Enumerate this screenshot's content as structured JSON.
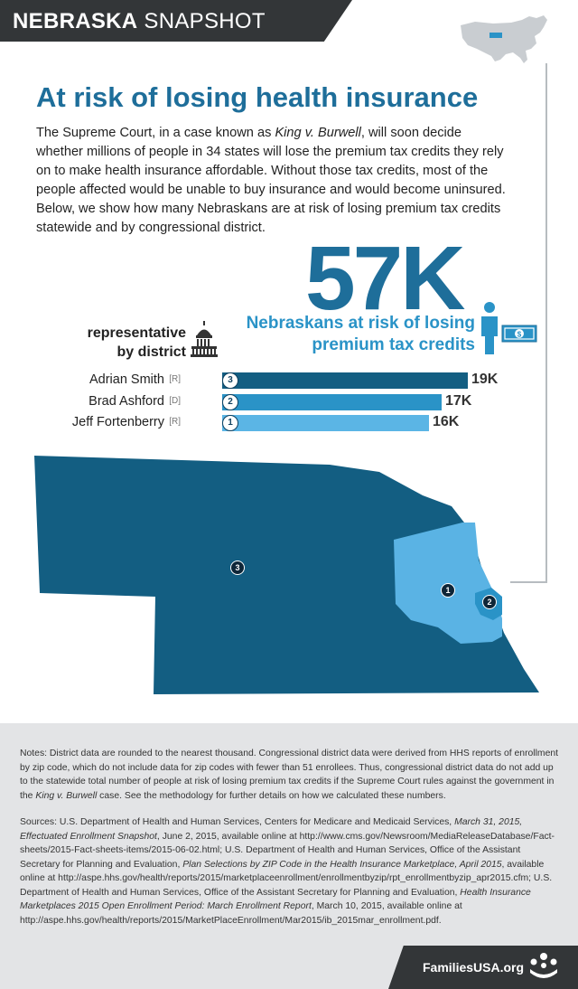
{
  "header": {
    "title_bold": "NEBRASKA",
    "title_light": "SNAPSHOT"
  },
  "main": {
    "title": "At risk of losing health insurance",
    "intro_parts": [
      "The Supreme Court, in a case known as ",
      "King v. Burwell",
      ", will soon decide whether millions of people in 34 states will lose the premium tax credits they rely on to make health insurance affordable. Without those tax credits, most of the people affected would be unable to buy insurance and would become uninsured. Below, we show how many Nebraskans are at risk of losing premium tax credits statewide and by congressional district."
    ],
    "statewide_value": "57K",
    "statewide_label_line1": "Nebraskans at risk of losing",
    "statewide_label_line2": "premium tax credits"
  },
  "representatives": {
    "label_line1": "representative",
    "label_line2": "by district",
    "rows": [
      {
        "name": "Adrian Smith",
        "party": "[R]",
        "district": "3",
        "value": 19,
        "display": "19K",
        "color": "#135e82"
      },
      {
        "name": "Brad Ashford",
        "party": "[D]",
        "district": "2",
        "value": 17,
        "display": "17K",
        "color": "#2a93c7"
      },
      {
        "name": "Jeff Fortenberry",
        "party": "[R]",
        "district": "1",
        "value": 16,
        "display": "16K",
        "color": "#5bb5e5"
      }
    ]
  },
  "map": {
    "markers": [
      "3",
      "1",
      "2"
    ],
    "colors": {
      "district3": "#135e82",
      "district1": "#5ab3e4",
      "district2": "#2a93c7"
    }
  },
  "footnotes": {
    "notes_parts": [
      "Notes: District data are rounded to the nearest thousand. Congressional district data were derived from HHS reports of enrollment by zip code, which do not include data for zip codes with fewer than 51 enrollees. Thus, congressional district data do not add up to the statewide total number of people at risk of losing premium tax credits if the Supreme Court rules against the government in the ",
      "King v. Burwell",
      " case. See the methodology for further details on how we calculated these numbers."
    ],
    "sources_parts": [
      "Sources: U.S. Department of Health and Human Services, Centers for Medicare and Medicaid Services, ",
      "March 31, 2015, Effectuated Enrollment Snapshot",
      ", June 2, 2015, available online at http://www.cms.gov/Newsroom/MediaReleaseDatabase/Fact-sheets/2015-Fact-sheets-items/2015-06-02.html; U.S. Department of Health and Human Services, Office of the Assistant Secretary for Planning and Evaluation, ",
      "Plan Selections by ZIP Code in the Health Insurance Marketplace, April 2015",
      ", available online at http://aspe.hhs.gov/health/reports/2015/marketplaceenrollment/enrollmentbyzip/rpt_enrollmentbyzip_apr2015.cfm; U.S. Department of Health and Human Services, Office of the Assistant Secretary for Planning and Evaluation, ",
      "Health Insurance Marketplaces 2015 Open Enrollment Period: March Enrollment Report",
      ", March 10, 2015, available online at http://aspe.hhs.gov/health/reports/2015/MarketPlaceEnrollment/Mar2015/ib_2015mar_enrollment.pdf."
    ]
  },
  "footer": {
    "brand": "FamiliesUSA.org"
  }
}
